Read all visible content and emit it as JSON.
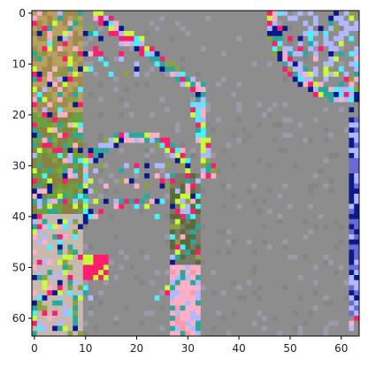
{
  "chart_data": {
    "type": "heatmap",
    "title": "",
    "xlabel": "",
    "ylabel": "",
    "grid": false,
    "legend": "none",
    "xlim": [
      -0.5,
      63.5
    ],
    "ylim": [
      63.5,
      -0.5
    ],
    "x_ticks": [
      0,
      10,
      20,
      30,
      40,
      50,
      60
    ],
    "y_ticks": [
      0,
      10,
      20,
      30,
      40,
      50,
      60
    ],
    "x_tick_labels": [
      "0",
      "10",
      "20",
      "30",
      "40",
      "50",
      "60"
    ],
    "y_tick_labels": [
      "0",
      "10",
      "20",
      "30",
      "40",
      "50",
      "60"
    ],
    "image_shape": [
      64,
      64
    ],
    "background_color": "#8d8d8d",
    "description_colors": {
      "gray": "#8d8d8d",
      "magenta": "#ff1e6e",
      "lime": "#c6ff3a",
      "cyan": "#4af2ff",
      "navy": "#0a1a8a",
      "olive": "#8aa240",
      "pink": "#ffb0c8",
      "teal": "#2aa89a",
      "lavender": "#b0b8ff"
    }
  }
}
